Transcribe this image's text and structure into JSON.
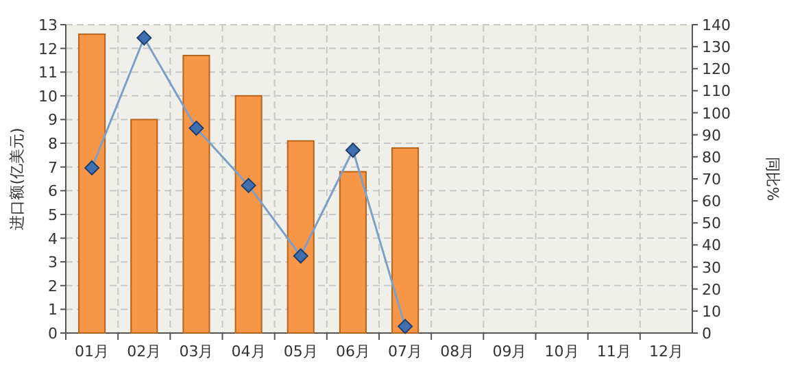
{
  "chart_data": {
    "type": "bar",
    "ylabel": "进口额(亿美元)",
    "y2label": "同比%",
    "categories": [
      "01月",
      "02月",
      "03月",
      "04月",
      "05月",
      "06月",
      "07月",
      "08月",
      "09月",
      "10月",
      "11月",
      "12月"
    ],
    "series": [
      {
        "color": "#f79646",
        "values": [
          12.6,
          9.0,
          11.7,
          10.0,
          8.1,
          6.8,
          7.8,
          null,
          null,
          null,
          null,
          null
        ]
      },
      {
        "type": "line",
        "axis": "y2",
        "color": "#7f9fc6",
        "marker": "diamond",
        "values": [
          75,
          134,
          93,
          67,
          35,
          83,
          3,
          null,
          null,
          null,
          null,
          null
        ]
      }
    ],
    "ylim": [
      0,
      13
    ],
    "yticks": [
      0,
      1,
      2,
      3,
      4,
      5,
      6,
      7,
      8,
      9,
      10,
      11,
      12,
      13
    ],
    "y2lim": [
      0,
      140
    ],
    "y2ticks": [
      0,
      10,
      20,
      30,
      40,
      50,
      60,
      70,
      80,
      90,
      100,
      110,
      120,
      130,
      140
    ],
    "grid": true
  }
}
